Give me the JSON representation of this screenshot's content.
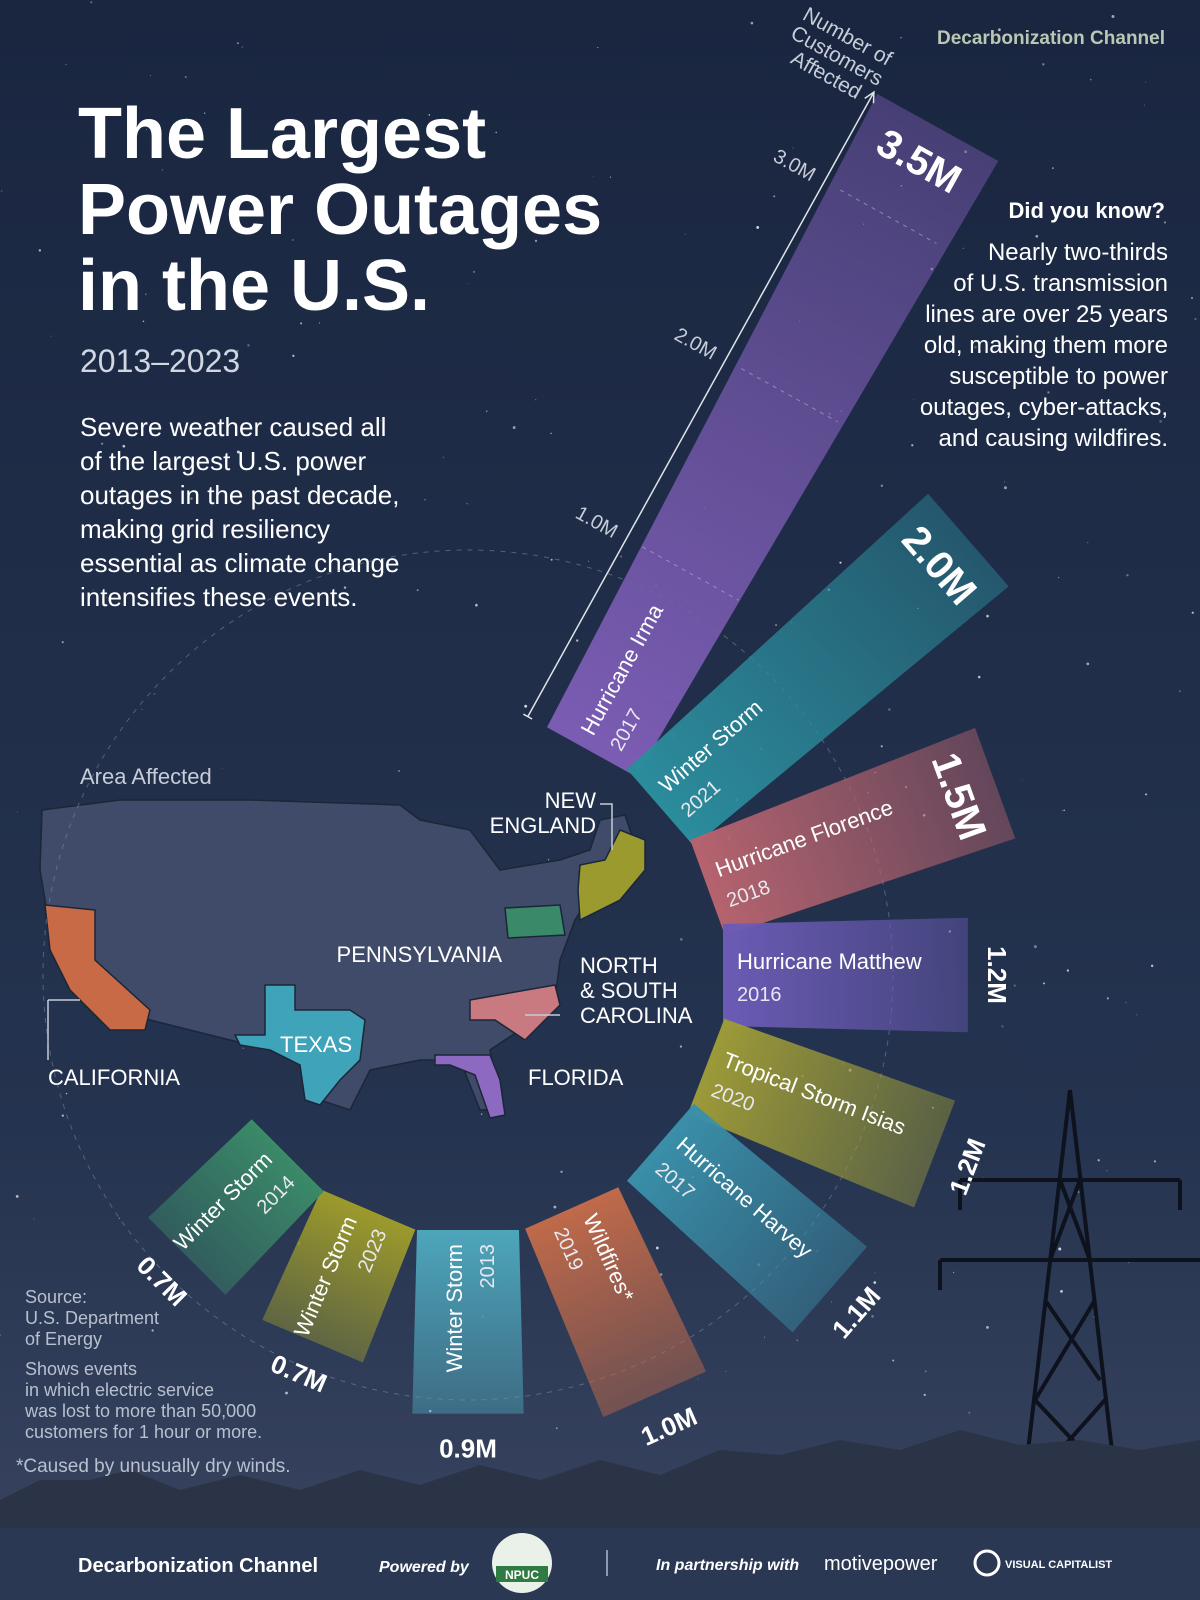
{
  "brand": "Decarbonization Channel",
  "title_lines": [
    "The Largest",
    "Power Outages",
    "in the U.S."
  ],
  "subtitle": "2013–2023",
  "description_lines": [
    "Severe weather caused all",
    "of the largest U.S. power",
    "outages in the past decade,",
    "making grid resiliency",
    "essential as climate change",
    "intensifies these events."
  ],
  "did_you_know": {
    "heading": "Did you know?",
    "lines": [
      "Nearly two-thirds",
      "of U.S. transmission",
      "lines are over 25 years",
      "old, making them more",
      "susceptible to power",
      "outages, cyber-attacks,",
      "and causing wildfires."
    ]
  },
  "map": {
    "title": "Area Affected",
    "regions": {
      "new_england": [
        "NEW",
        "ENGLAND"
      ],
      "pennsylvania": [
        "PENNSYLVANIA"
      ],
      "carolinas": [
        "NORTH",
        "& SOUTH",
        "CAROLINA"
      ],
      "texas": [
        "TEXAS"
      ],
      "california": [
        "CALIFORNIA"
      ],
      "florida": [
        "FLORIDA"
      ]
    }
  },
  "chart_data": {
    "type": "radial_bar",
    "ylabel_lines": [
      "Number of",
      "Customers",
      "Affected"
    ],
    "categories": [
      "Hurricane Irma",
      "Winter Storm",
      "Hurricane Florence",
      "Hurricane Matthew",
      "Tropical Storm Isias",
      "Hurricane Harvey",
      "Wildfires*",
      "Winter Storm",
      "Winter Storm",
      "Winter Storm"
    ],
    "years": [
      "2017",
      "2021",
      "2018",
      "2016",
      "2020",
      "2017",
      "2019",
      "2013",
      "2023",
      "2014"
    ],
    "values": [
      3.5,
      2.0,
      1.5,
      1.2,
      1.2,
      1.1,
      1.0,
      0.9,
      0.7,
      0.7
    ],
    "value_labels": [
      "3.5M",
      "2.0M",
      "1.5M",
      "1.2M",
      "1.2M",
      "1.1M",
      "1.0M",
      "0.9M",
      "0.7M",
      "0.7M"
    ],
    "colors": [
      "#7b5cb3",
      "#2b8c9c",
      "#b5636e",
      "#6b5bb5",
      "#9c9a38",
      "#3a8fa9",
      "#c06a4a",
      "#4ea6bb",
      "#9c9a2c",
      "#3b8a69"
    ],
    "ylim": [
      0,
      3.5
    ],
    "yticks": [
      {
        "value": 1,
        "label": "1.0M"
      },
      {
        "value": 2,
        "label": "2.0M"
      },
      {
        "value": 3,
        "label": "3.0M"
      }
    ],
    "grid": true
  },
  "notes": {
    "source_lines": [
      "Source:",
      "U.S. Department",
      "of Energy"
    ],
    "method_lines": [
      "Shows events",
      "in which electric service",
      "was lost to more than 50,000",
      "customers for 1 hour or more."
    ],
    "footnote": "*Caused by unusually dry winds."
  },
  "footer": {
    "brand": "Decarbonization Channel",
    "powered_by": "Powered by",
    "npuc": "NPUC",
    "partnership": "In partnership with",
    "motive": "motivepower",
    "visual": "VISUAL CAPITALIST"
  }
}
